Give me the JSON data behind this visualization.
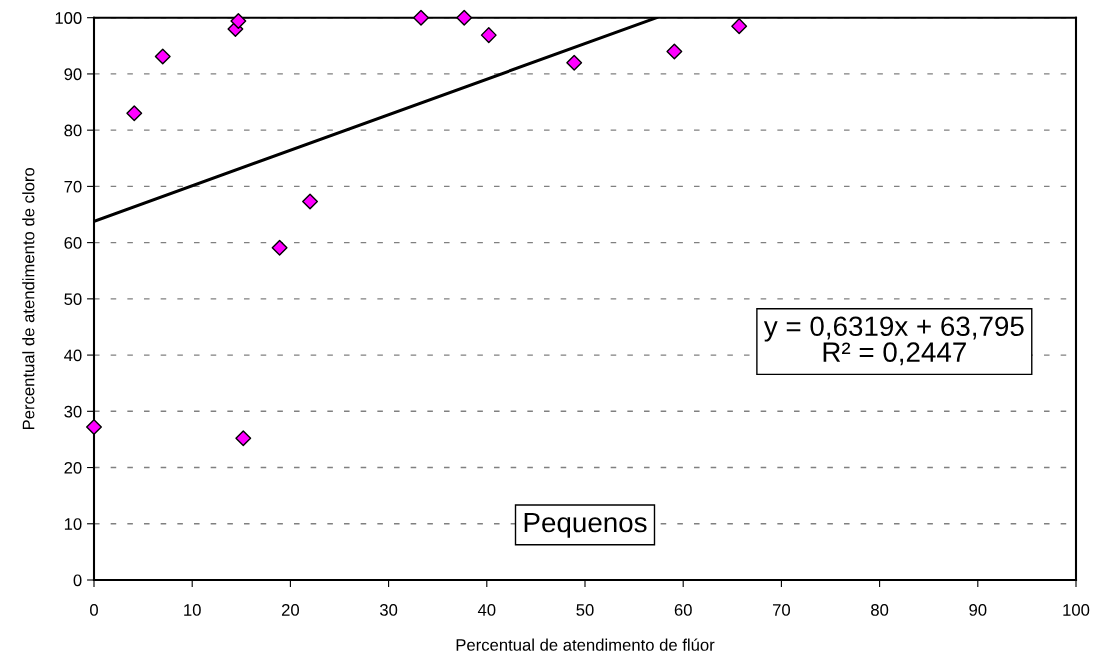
{
  "chart_data": {
    "type": "scatter",
    "xlabel": "Percentual de atendimento de flúor",
    "ylabel": "Percentual de atendimento de cloro",
    "xlim": [
      0,
      100
    ],
    "xticks": [
      0,
      10,
      20,
      30,
      40,
      50,
      60,
      70,
      80,
      90,
      100
    ],
    "ylim": [
      0,
      100
    ],
    "yticks": [
      0,
      10,
      20,
      30,
      40,
      50,
      60,
      70,
      80,
      90,
      100
    ],
    "grid": "y",
    "legend": false,
    "marker": "diamond",
    "annotations": [
      "y = 0,6319x + 63,795\nR² = 0,2447",
      "Pequenos"
    ],
    "series": [
      {
        "color": "#ff00ff",
        "x": [
          0,
          15.2,
          4.1,
          7.0,
          14.4,
          14.7,
          18.9,
          22.0,
          33.3,
          37.7,
          40.2,
          48.9,
          59.1,
          65.7
        ],
        "values": [
          27.2,
          25.2,
          83.0,
          93.1,
          98.0,
          99.4,
          59.1,
          67.3,
          100,
          100,
          96.9,
          92.0,
          94.0,
          98.5
        ]
      },
      {
        "type": "line",
        "color": "#000000",
        "line_style": "solid",
        "marker": "none",
        "x": [
          0,
          57.3
        ],
        "values": [
          63.8,
          100
        ]
      }
    ]
  }
}
